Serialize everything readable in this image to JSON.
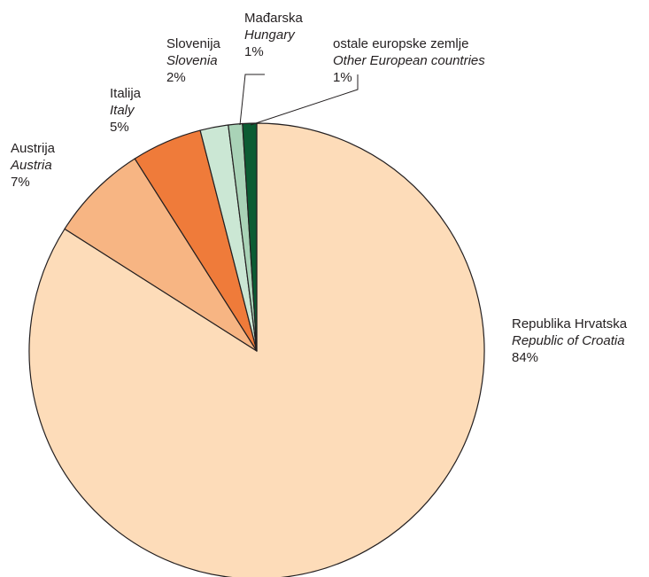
{
  "chart_data": {
    "type": "pie",
    "start_angle": "12 o'clock",
    "direction": "clockwise",
    "slices": [
      {
        "name_hr": "Republika Hrvatska",
        "name_en": "Republic of Croatia",
        "value": 84,
        "label": "84%",
        "color": "#fddcb9"
      },
      {
        "name_hr": "Austrija",
        "name_en": "Austria",
        "value": 7,
        "label": "7%",
        "color": "#f7b583"
      },
      {
        "name_hr": "Italija",
        "name_en": "Italy",
        "value": 5,
        "label": "5%",
        "color": "#ef7b3a"
      },
      {
        "name_hr": "Slovenija",
        "name_en": "Slovenia",
        "value": 2,
        "label": "2%",
        "color": "#cbe7d4"
      },
      {
        "name_hr": "Mađarska",
        "name_en": "Hungary",
        "value": 1,
        "label": "1%",
        "color": "#a9d3b7"
      },
      {
        "name_hr": "ostale europske zemlje",
        "name_en": "Other European countries",
        "value": 1,
        "label": "1%",
        "color": "#0b5c33"
      }
    ]
  }
}
